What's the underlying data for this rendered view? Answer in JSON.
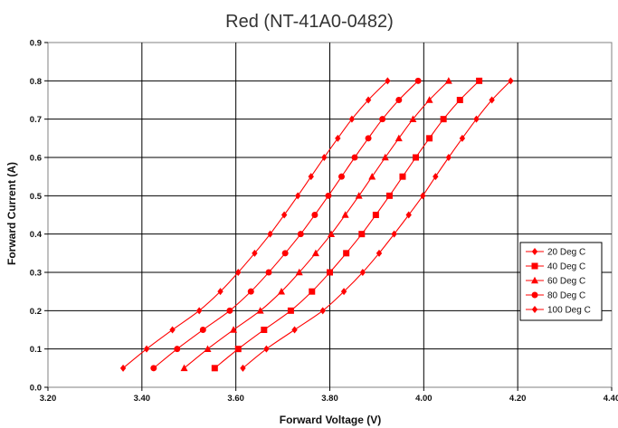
{
  "chart_data": {
    "type": "line",
    "title": "Red (NT-41A0-0482)",
    "xlabel": "Forward Voltage (V)",
    "ylabel": "Forward Current (A)",
    "xlim": [
      3.2,
      4.4
    ],
    "ylim": [
      0,
      0.9
    ],
    "grid": true,
    "legend_position": "right",
    "x_ticks": [
      "3.20",
      "3.40",
      "3.60",
      "3.80",
      "4.00",
      "4.20",
      "4.40"
    ],
    "y_ticks": [
      "0.0",
      "0.1",
      "0.2",
      "0.3",
      "0.4",
      "0.5",
      "0.6",
      "0.7",
      "0.8",
      "0.9"
    ],
    "line_color": "#ff0000",
    "series": [
      {
        "name": "20 Deg C",
        "marker": "diamond",
        "points": [
          [
            3.615,
            0.05
          ],
          [
            3.665,
            0.1
          ],
          [
            3.725,
            0.15
          ],
          [
            3.785,
            0.2
          ],
          [
            3.83,
            0.25
          ],
          [
            3.87,
            0.3
          ],
          [
            3.905,
            0.35
          ],
          [
            3.937,
            0.4
          ],
          [
            3.968,
            0.45
          ],
          [
            3.998,
            0.5
          ],
          [
            4.025,
            0.55
          ],
          [
            4.053,
            0.6
          ],
          [
            4.082,
            0.65
          ],
          [
            4.112,
            0.7
          ],
          [
            4.145,
            0.75
          ],
          [
            4.185,
            0.8
          ]
        ]
      },
      {
        "name": "40 Deg C",
        "marker": "square",
        "points": [
          [
            3.555,
            0.05
          ],
          [
            3.605,
            0.1
          ],
          [
            3.66,
            0.15
          ],
          [
            3.717,
            0.2
          ],
          [
            3.762,
            0.25
          ],
          [
            3.8,
            0.3
          ],
          [
            3.835,
            0.35
          ],
          [
            3.868,
            0.4
          ],
          [
            3.898,
            0.45
          ],
          [
            3.927,
            0.5
          ],
          [
            3.955,
            0.55
          ],
          [
            3.983,
            0.6
          ],
          [
            4.012,
            0.65
          ],
          [
            4.042,
            0.7
          ],
          [
            4.077,
            0.75
          ],
          [
            4.118,
            0.8
          ]
        ]
      },
      {
        "name": "60 Deg C",
        "marker": "triangle",
        "points": [
          [
            3.49,
            0.05
          ],
          [
            3.54,
            0.1
          ],
          [
            3.595,
            0.15
          ],
          [
            3.652,
            0.2
          ],
          [
            3.697,
            0.25
          ],
          [
            3.735,
            0.3
          ],
          [
            3.77,
            0.35
          ],
          [
            3.803,
            0.4
          ],
          [
            3.833,
            0.45
          ],
          [
            3.862,
            0.5
          ],
          [
            3.89,
            0.55
          ],
          [
            3.918,
            0.6
          ],
          [
            3.947,
            0.65
          ],
          [
            3.977,
            0.7
          ],
          [
            4.012,
            0.75
          ],
          [
            4.053,
            0.8
          ]
        ]
      },
      {
        "name": "80 Deg C",
        "marker": "circle",
        "points": [
          [
            3.425,
            0.05
          ],
          [
            3.475,
            0.1
          ],
          [
            3.53,
            0.15
          ],
          [
            3.587,
            0.2
          ],
          [
            3.632,
            0.25
          ],
          [
            3.67,
            0.3
          ],
          [
            3.705,
            0.35
          ],
          [
            3.738,
            0.4
          ],
          [
            3.768,
            0.45
          ],
          [
            3.797,
            0.5
          ],
          [
            3.825,
            0.55
          ],
          [
            3.853,
            0.6
          ],
          [
            3.882,
            0.65
          ],
          [
            3.912,
            0.7
          ],
          [
            3.947,
            0.75
          ],
          [
            3.988,
            0.8
          ]
        ]
      },
      {
        "name": "100 Deg C",
        "marker": "diamond",
        "points": [
          [
            3.36,
            0.05
          ],
          [
            3.41,
            0.1
          ],
          [
            3.465,
            0.15
          ],
          [
            3.522,
            0.2
          ],
          [
            3.567,
            0.25
          ],
          [
            3.605,
            0.3
          ],
          [
            3.64,
            0.35
          ],
          [
            3.673,
            0.4
          ],
          [
            3.703,
            0.45
          ],
          [
            3.732,
            0.5
          ],
          [
            3.76,
            0.55
          ],
          [
            3.788,
            0.6
          ],
          [
            3.817,
            0.65
          ],
          [
            3.847,
            0.7
          ],
          [
            3.882,
            0.75
          ],
          [
            3.923,
            0.8
          ]
        ]
      }
    ]
  }
}
